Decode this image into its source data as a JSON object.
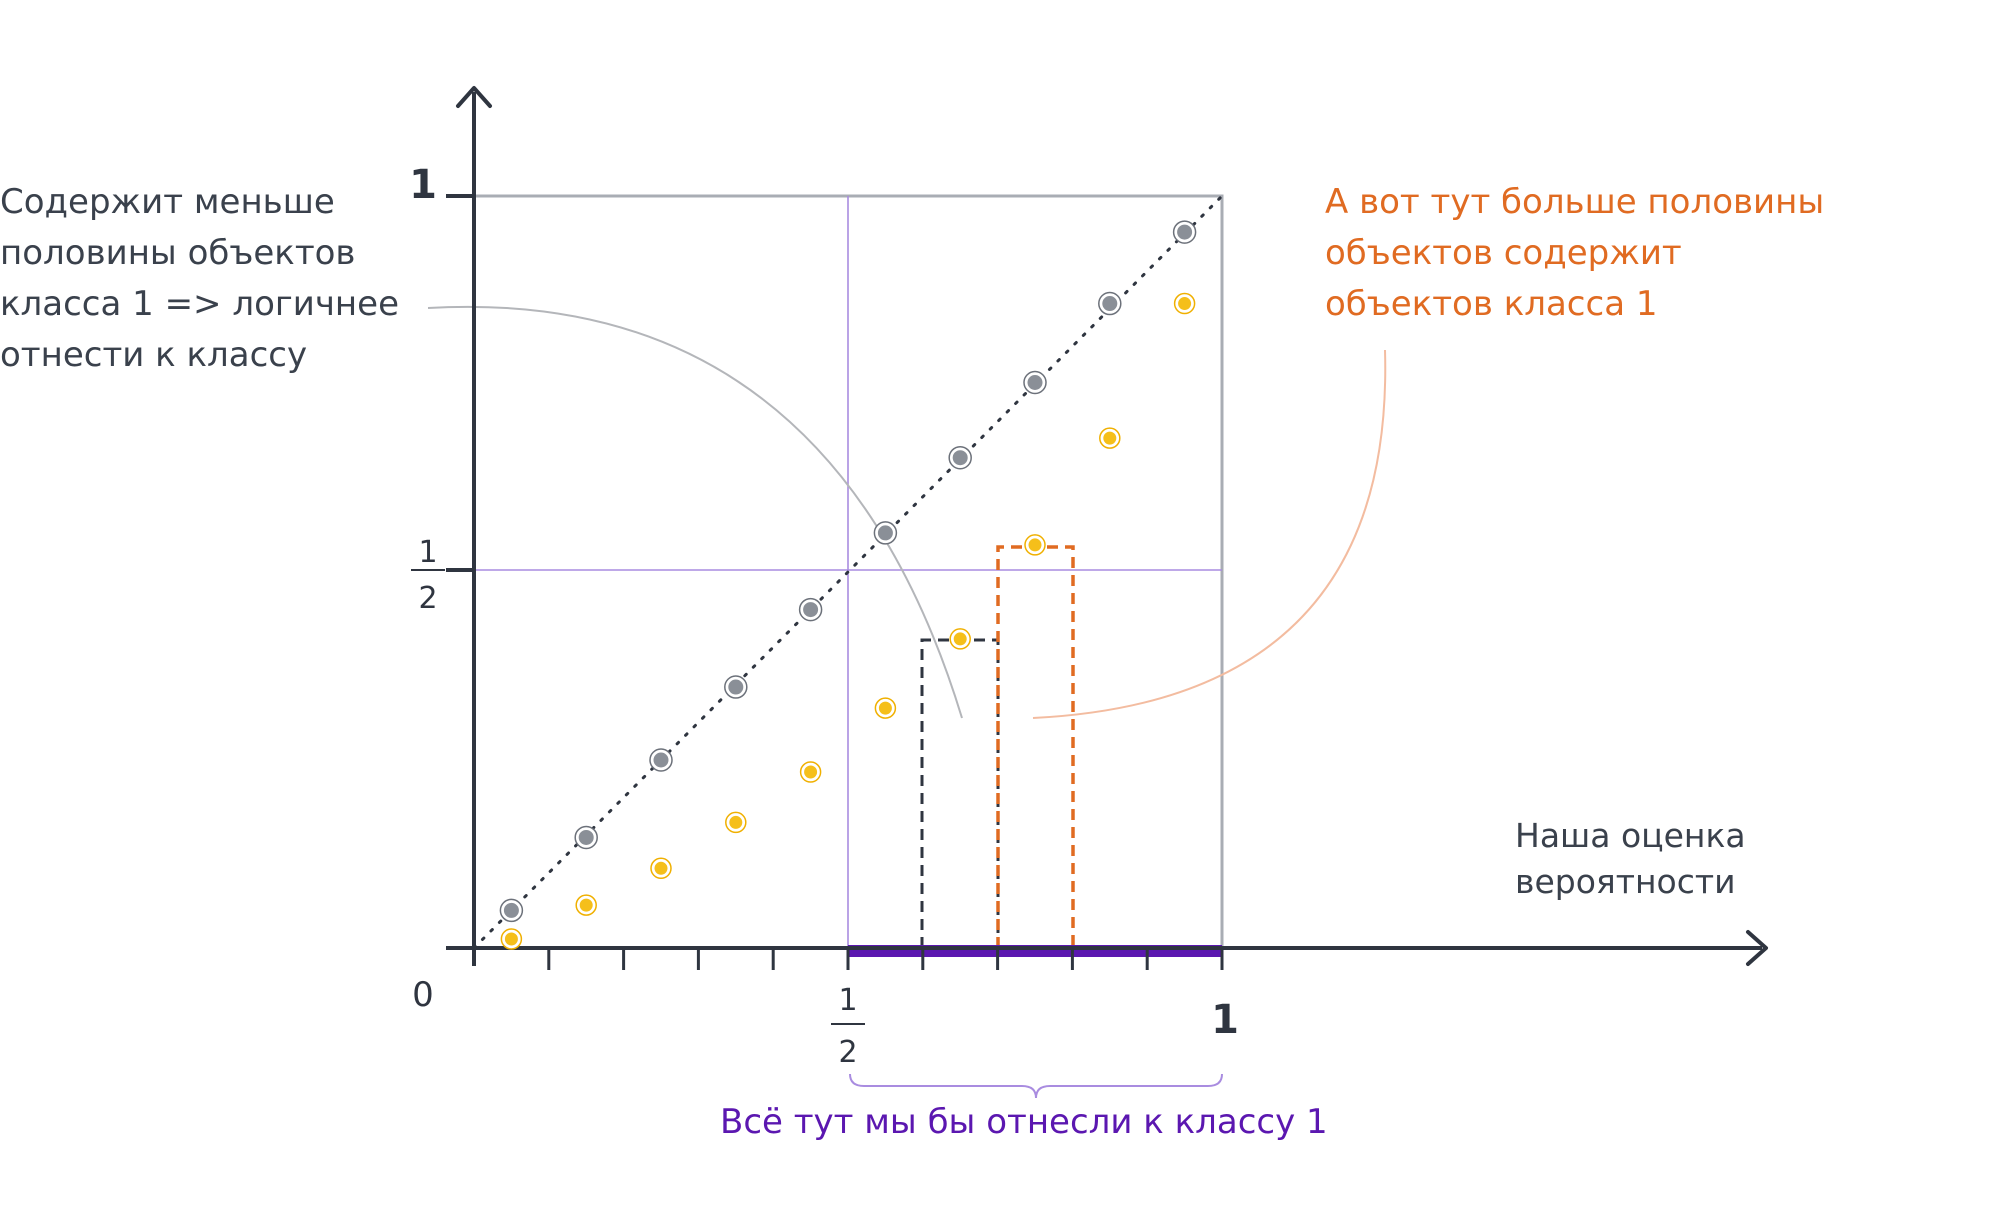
{
  "annotations": {
    "left_note": [
      "Содержит меньше",
      "половины объектов",
      "класса 1 => логичнее",
      "отнести к классу"
    ],
    "right_note": [
      "А вот тут больше половины",
      "объектов содержит",
      "объектов класса 1"
    ],
    "x_axis_label": [
      "Наша оценка",
      "вероятности"
    ],
    "bottom_note": "Всё тут мы бы отнесли к классу 1"
  },
  "axis_labels": {
    "origin": "0",
    "y_one": "1",
    "y_half_num": "1",
    "y_half_den": "2",
    "x_half_num": "1",
    "x_half_den": "2",
    "x_one": "1"
  },
  "colors": {
    "axis": "#2f3540",
    "box": "#a9adb4",
    "diagonal": "#2f3540",
    "half_lines": "#a98ce0",
    "gray_points": "#8a8f97",
    "yellow_points": "#f5bf1a",
    "dark_dashed": "#2f3540",
    "orange_dashed": "#e06b22",
    "purple_bar": "#5b17b0",
    "left_callout": "#b4b6ba",
    "right_callout": "#f3bca0"
  },
  "chart_data": {
    "type": "scatter",
    "xlim": [
      0,
      1
    ],
    "ylim": [
      0,
      1
    ],
    "x_ticks": [
      0,
      0.1,
      0.2,
      0.3,
      0.4,
      0.5,
      0.6,
      0.7,
      0.8,
      0.9,
      1
    ],
    "series": [
      {
        "color": "gray",
        "points": [
          [
            0.05,
            0.05
          ],
          [
            0.15,
            0.147
          ],
          [
            0.25,
            0.25
          ],
          [
            0.35,
            0.347
          ],
          [
            0.45,
            0.45
          ],
          [
            0.55,
            0.552
          ],
          [
            0.65,
            0.652
          ],
          [
            0.75,
            0.752
          ],
          [
            0.85,
            0.857
          ],
          [
            0.95,
            0.952
          ]
        ]
      },
      {
        "color": "yellow",
        "points": [
          [
            0.05,
            0.012
          ],
          [
            0.15,
            0.057
          ],
          [
            0.25,
            0.106
          ],
          [
            0.35,
            0.167
          ],
          [
            0.45,
            0.234
          ],
          [
            0.55,
            0.319
          ],
          [
            0.65,
            0.411
          ],
          [
            0.75,
            0.536
          ],
          [
            0.85,
            0.678
          ],
          [
            0.95,
            0.857
          ]
        ]
      }
    ],
    "dashed_bins": [
      {
        "color": "dark",
        "x_range": [
          0.6,
          0.7
        ],
        "height": 0.411
      },
      {
        "color": "orange",
        "x_range": [
          0.7,
          0.8
        ],
        "height": 0.536
      }
    ],
    "highlight_range": [
      0.5,
      1
    ]
  }
}
